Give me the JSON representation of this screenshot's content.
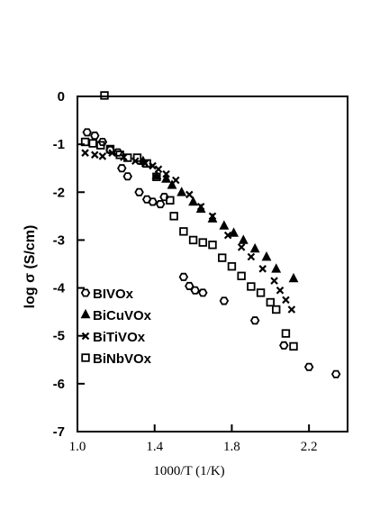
{
  "chart_data": {
    "type": "scatter",
    "xlabel": "1000/T (1/K)",
    "ylabel": "log σ (S/cm)",
    "xlim": [
      1.0,
      2.4
    ],
    "ylim": [
      -7,
      0
    ],
    "x_ticks": [
      1.0,
      1.4,
      1.8,
      2.2
    ],
    "x_tick_labels": [
      "1.0",
      "1.4",
      "1.8",
      "2.2"
    ],
    "y_ticks": [
      0,
      -1,
      -2,
      -3,
      -4,
      -5,
      -6,
      -7
    ],
    "y_tick_labels": [
      "0",
      "-1",
      "-2",
      "-3",
      "-4",
      "-5",
      "-6",
      "-7"
    ],
    "grid": false,
    "legend_position": "left",
    "series": [
      {
        "name": "BIVOx",
        "marker": "hexagon",
        "points": [
          [
            1.05,
            -0.75
          ],
          [
            1.09,
            -0.82
          ],
          [
            1.13,
            -0.95
          ],
          [
            1.17,
            -1.12
          ],
          [
            1.21,
            -1.17
          ],
          [
            1.23,
            -1.5
          ],
          [
            1.26,
            -1.67
          ],
          [
            1.32,
            -2.0
          ],
          [
            1.36,
            -2.15
          ],
          [
            1.39,
            -2.2
          ],
          [
            1.43,
            -2.25
          ],
          [
            1.45,
            -2.1
          ],
          [
            1.55,
            -3.77
          ],
          [
            1.58,
            -3.96
          ],
          [
            1.61,
            -4.05
          ],
          [
            1.65,
            -4.1
          ],
          [
            1.76,
            -4.27
          ],
          [
            1.92,
            -4.68
          ],
          [
            2.07,
            -5.2
          ],
          [
            2.2,
            -5.65
          ],
          [
            2.34,
            -5.8
          ]
        ]
      },
      {
        "name": "BiCuVOx",
        "marker": "triangle",
        "points": [
          [
            1.34,
            -1.35
          ],
          [
            1.41,
            -1.65
          ],
          [
            1.46,
            -1.72
          ],
          [
            1.49,
            -1.85
          ],
          [
            1.54,
            -2.0
          ],
          [
            1.6,
            -2.2
          ],
          [
            1.64,
            -2.35
          ],
          [
            1.7,
            -2.55
          ],
          [
            1.76,
            -2.7
          ],
          [
            1.81,
            -2.85
          ],
          [
            1.86,
            -3.0
          ],
          [
            1.92,
            -3.18
          ],
          [
            1.98,
            -3.35
          ],
          [
            2.03,
            -3.6
          ],
          [
            2.12,
            -3.8
          ]
        ]
      },
      {
        "name": "BiTiVOx",
        "marker": "x",
        "points": [
          [
            1.04,
            -1.18
          ],
          [
            1.09,
            -1.22
          ],
          [
            1.13,
            -1.25
          ],
          [
            1.18,
            -1.18
          ],
          [
            1.24,
            -1.27
          ],
          [
            1.3,
            -1.35
          ],
          [
            1.35,
            -1.4
          ],
          [
            1.39,
            -1.45
          ],
          [
            1.42,
            -1.52
          ],
          [
            1.46,
            -1.62
          ],
          [
            1.51,
            -1.75
          ],
          [
            1.58,
            -2.05
          ],
          [
            1.64,
            -2.3
          ],
          [
            1.7,
            -2.5
          ],
          [
            1.78,
            -2.9
          ],
          [
            1.85,
            -3.15
          ],
          [
            1.9,
            -3.35
          ],
          [
            1.96,
            -3.6
          ],
          [
            2.02,
            -3.85
          ],
          [
            2.05,
            -4.05
          ],
          [
            2.08,
            -4.25
          ],
          [
            2.11,
            -4.45
          ]
        ]
      },
      {
        "name": "BiNbVOx",
        "marker": "square",
        "points": [
          [
            1.04,
            -0.95
          ],
          [
            1.08,
            -0.98
          ],
          [
            1.12,
            -1.02
          ],
          [
            1.14,
            0.02
          ],
          [
            1.17,
            -1.1
          ],
          [
            1.22,
            -1.22
          ],
          [
            1.26,
            -1.28
          ],
          [
            1.31,
            -1.28
          ],
          [
            1.36,
            -1.4
          ],
          [
            1.41,
            -1.68
          ],
          [
            1.48,
            -2.17
          ],
          [
            1.5,
            -2.5
          ],
          [
            1.55,
            -2.82
          ],
          [
            1.6,
            -3.0
          ],
          [
            1.65,
            -3.05
          ],
          [
            1.7,
            -3.1
          ],
          [
            1.75,
            -3.37
          ],
          [
            1.8,
            -3.55
          ],
          [
            1.85,
            -3.75
          ],
          [
            1.9,
            -3.97
          ],
          [
            1.95,
            -4.1
          ],
          [
            2.0,
            -4.3
          ],
          [
            2.03,
            -4.45
          ],
          [
            2.08,
            -4.95
          ],
          [
            2.12,
            -5.22
          ]
        ]
      }
    ]
  }
}
